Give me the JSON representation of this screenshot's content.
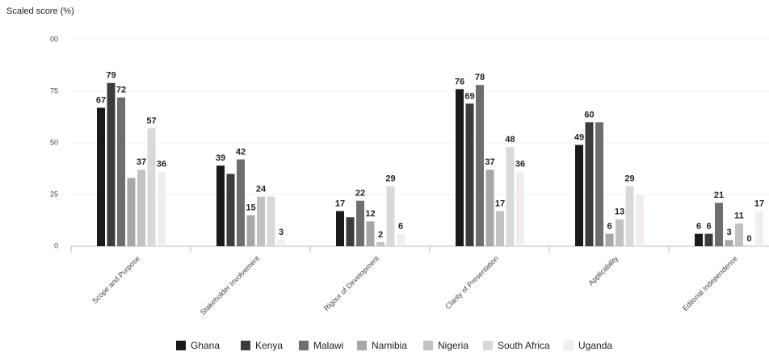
{
  "chart_data": {
    "type": "bar",
    "ylabel": "Scaled score (%)",
    "categories": [
      "Scope and Purpose",
      "Stakeholder Involvement",
      "Rigour of Development",
      "Clarity of Presentation",
      "Applicability",
      "Editorial Independence"
    ],
    "series": [
      {
        "name": "Ghana",
        "color": "#1a1a1a",
        "values": [
          67,
          39,
          17,
          76,
          49,
          6
        ],
        "value_labels": [
          "67",
          "39",
          "17",
          "76",
          "49",
          "6"
        ]
      },
      {
        "name": "Kenya",
        "color": "#3c3c3c",
        "values": [
          79,
          35,
          14,
          69,
          60,
          6
        ],
        "value_labels": [
          "79",
          null,
          null,
          "69",
          "60",
          "6"
        ]
      },
      {
        "name": "Malawi",
        "color": "#6e6e6e",
        "values": [
          72,
          42,
          22,
          78,
          60,
          21
        ],
        "value_labels": [
          "72",
          "42",
          "22",
          "78",
          null,
          "21"
        ]
      },
      {
        "name": "Namibia",
        "color": "#a6a8a6",
        "values": [
          33,
          15,
          12,
          37,
          6,
          3
        ],
        "value_labels": [
          null,
          "15",
          "12",
          "37",
          "6",
          "3"
        ]
      },
      {
        "name": "Nigeria",
        "color": "#c2c2c2",
        "values": [
          37,
          24,
          2,
          17,
          13,
          11
        ],
        "value_labels": [
          "37",
          "24",
          "2",
          "17",
          "13",
          "11"
        ]
      },
      {
        "name": "South Africa",
        "color": "#d9d9dc",
        "values": [
          57,
          24,
          29,
          48,
          29,
          0
        ],
        "value_labels": [
          "57",
          null,
          "29",
          "48",
          "29",
          "0"
        ]
      },
      {
        "name": "Uganda",
        "color": "#f3eeee",
        "values": [
          36,
          3,
          6,
          36,
          25,
          17
        ],
        "value_labels": [
          "36",
          "3",
          "6",
          "36",
          null,
          "17"
        ]
      }
    ],
    "ylim": [
      0,
      100
    ],
    "yticks": [
      0,
      25,
      50,
      75,
      {
        "value": 100,
        "label": "00"
      }
    ],
    "legend": "bottom"
  }
}
